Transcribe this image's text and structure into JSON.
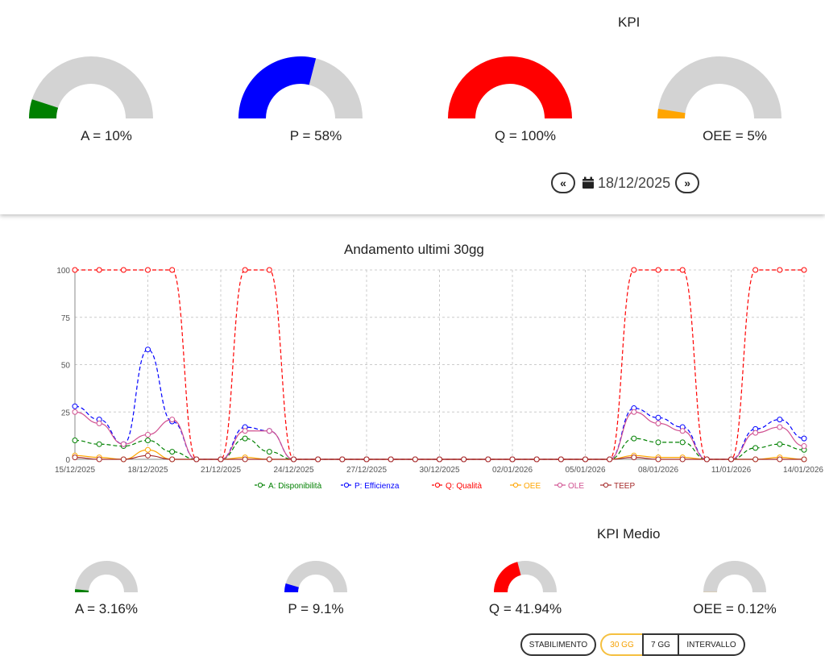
{
  "kpi": {
    "title": "KPI",
    "gauges": [
      {
        "label": "A = 10%",
        "value": 10,
        "color": "#008000"
      },
      {
        "label": "P = 58%",
        "value": 58,
        "color": "#0000ff"
      },
      {
        "label": "Q = 100%",
        "value": 100,
        "color": "#ff0000"
      },
      {
        "label": "OEE = 5%",
        "value": 5,
        "color": "#ffa500"
      }
    ],
    "prev_label": "«",
    "next_label": "»",
    "date": "18/12/2025"
  },
  "trend": {
    "title": "Andamento ultimi 30gg"
  },
  "chart_data": {
    "type": "line",
    "title": "Andamento ultimi 30gg",
    "x": [
      "15/12/2025",
      "16/12/2025",
      "17/12/2025",
      "18/12/2025",
      "19/12/2025",
      "20/12/2025",
      "21/12/2025",
      "22/12/2025",
      "23/12/2025",
      "24/12/2025",
      "25/12/2025",
      "26/12/2025",
      "27/12/2025",
      "28/12/2025",
      "29/12/2025",
      "30/12/2025",
      "31/12/2025",
      "01/01/2026",
      "02/01/2026",
      "03/01/2026",
      "04/01/2026",
      "05/01/2026",
      "06/01/2026",
      "07/01/2026",
      "08/01/2026",
      "09/01/2026",
      "10/01/2026",
      "11/01/2026",
      "12/01/2026",
      "13/01/2026",
      "14/01/2026"
    ],
    "x_tick_labels": [
      "15/12/2025",
      "18/12/2025",
      "21/12/2025",
      "24/12/2025",
      "27/12/2025",
      "30/12/2025",
      "02/01/2026",
      "05/01/2026",
      "08/01/2026",
      "11/01/2026",
      "14/01/2026"
    ],
    "ylim": [
      0,
      100
    ],
    "y_ticks": [
      "0",
      "25",
      "50",
      "75",
      "100"
    ],
    "grid": true,
    "legend_position": "bottom",
    "series": [
      {
        "name": "A: Disponibilità",
        "color": "#008000",
        "dashed": true,
        "values": [
          10,
          8,
          7,
          10,
          4,
          0,
          0,
          11,
          4,
          0,
          0,
          0,
          0,
          0,
          0,
          0,
          0,
          0,
          0,
          0,
          0,
          0,
          0,
          11,
          9,
          9,
          0,
          0,
          6,
          8,
          5
        ]
      },
      {
        "name": "P: Efficienza",
        "color": "#0000ff",
        "dashed": true,
        "values": [
          28,
          21,
          8,
          58,
          20,
          0,
          0,
          17,
          15,
          0,
          0,
          0,
          0,
          0,
          0,
          0,
          0,
          0,
          0,
          0,
          0,
          0,
          0,
          27,
          22,
          17,
          0,
          0,
          16,
          21,
          11
        ]
      },
      {
        "name": "Q: Qualità",
        "color": "#ff0000",
        "dashed": true,
        "values": [
          100,
          100,
          100,
          100,
          100,
          0,
          0,
          100,
          100,
          0,
          0,
          0,
          0,
          0,
          0,
          0,
          0,
          0,
          0,
          0,
          0,
          0,
          0,
          100,
          100,
          100,
          0,
          0,
          100,
          100,
          100
        ]
      },
      {
        "name": "OEE",
        "color": "#ffa500",
        "dashed": false,
        "values": [
          2,
          1,
          0,
          5,
          0,
          0,
          0,
          1,
          0,
          0,
          0,
          0,
          0,
          0,
          0,
          0,
          0,
          0,
          0,
          0,
          0,
          0,
          0,
          2,
          1,
          1,
          0,
          0,
          0,
          1,
          0
        ]
      },
      {
        "name": "OLE",
        "color": "#d05090",
        "dashed": false,
        "values": [
          25,
          19,
          8,
          13,
          21,
          0,
          0,
          15,
          15,
          0,
          0,
          0,
          0,
          0,
          0,
          0,
          0,
          0,
          0,
          0,
          0,
          0,
          0,
          25,
          19,
          15,
          0,
          0,
          14,
          17,
          7
        ]
      },
      {
        "name": "TEEP",
        "color": "#a52a2a",
        "dashed": false,
        "values": [
          1,
          0,
          0,
          2,
          0,
          0,
          0,
          0,
          0,
          0,
          0,
          0,
          0,
          0,
          0,
          0,
          0,
          0,
          0,
          0,
          0,
          0,
          0,
          1,
          0,
          0,
          0,
          0,
          0,
          0,
          0
        ]
      }
    ]
  },
  "kpi_medio": {
    "title": "KPI Medio",
    "gauges": [
      {
        "label": "A = 3.16%",
        "value": 3.16,
        "color": "#008000"
      },
      {
        "label": "P = 9.1%",
        "value": 9.1,
        "color": "#0000ff"
      },
      {
        "label": "Q = 41.94%",
        "value": 41.94,
        "color": "#ff0000"
      },
      {
        "label": "OEE = 0.12%",
        "value": 0.12,
        "color": "#ffa500"
      }
    ],
    "buttons": {
      "stabilimento": "STABILIMENTO",
      "gg30": "30 GG",
      "gg7": "7 GG",
      "intervallo": "INTERVALLO"
    }
  }
}
